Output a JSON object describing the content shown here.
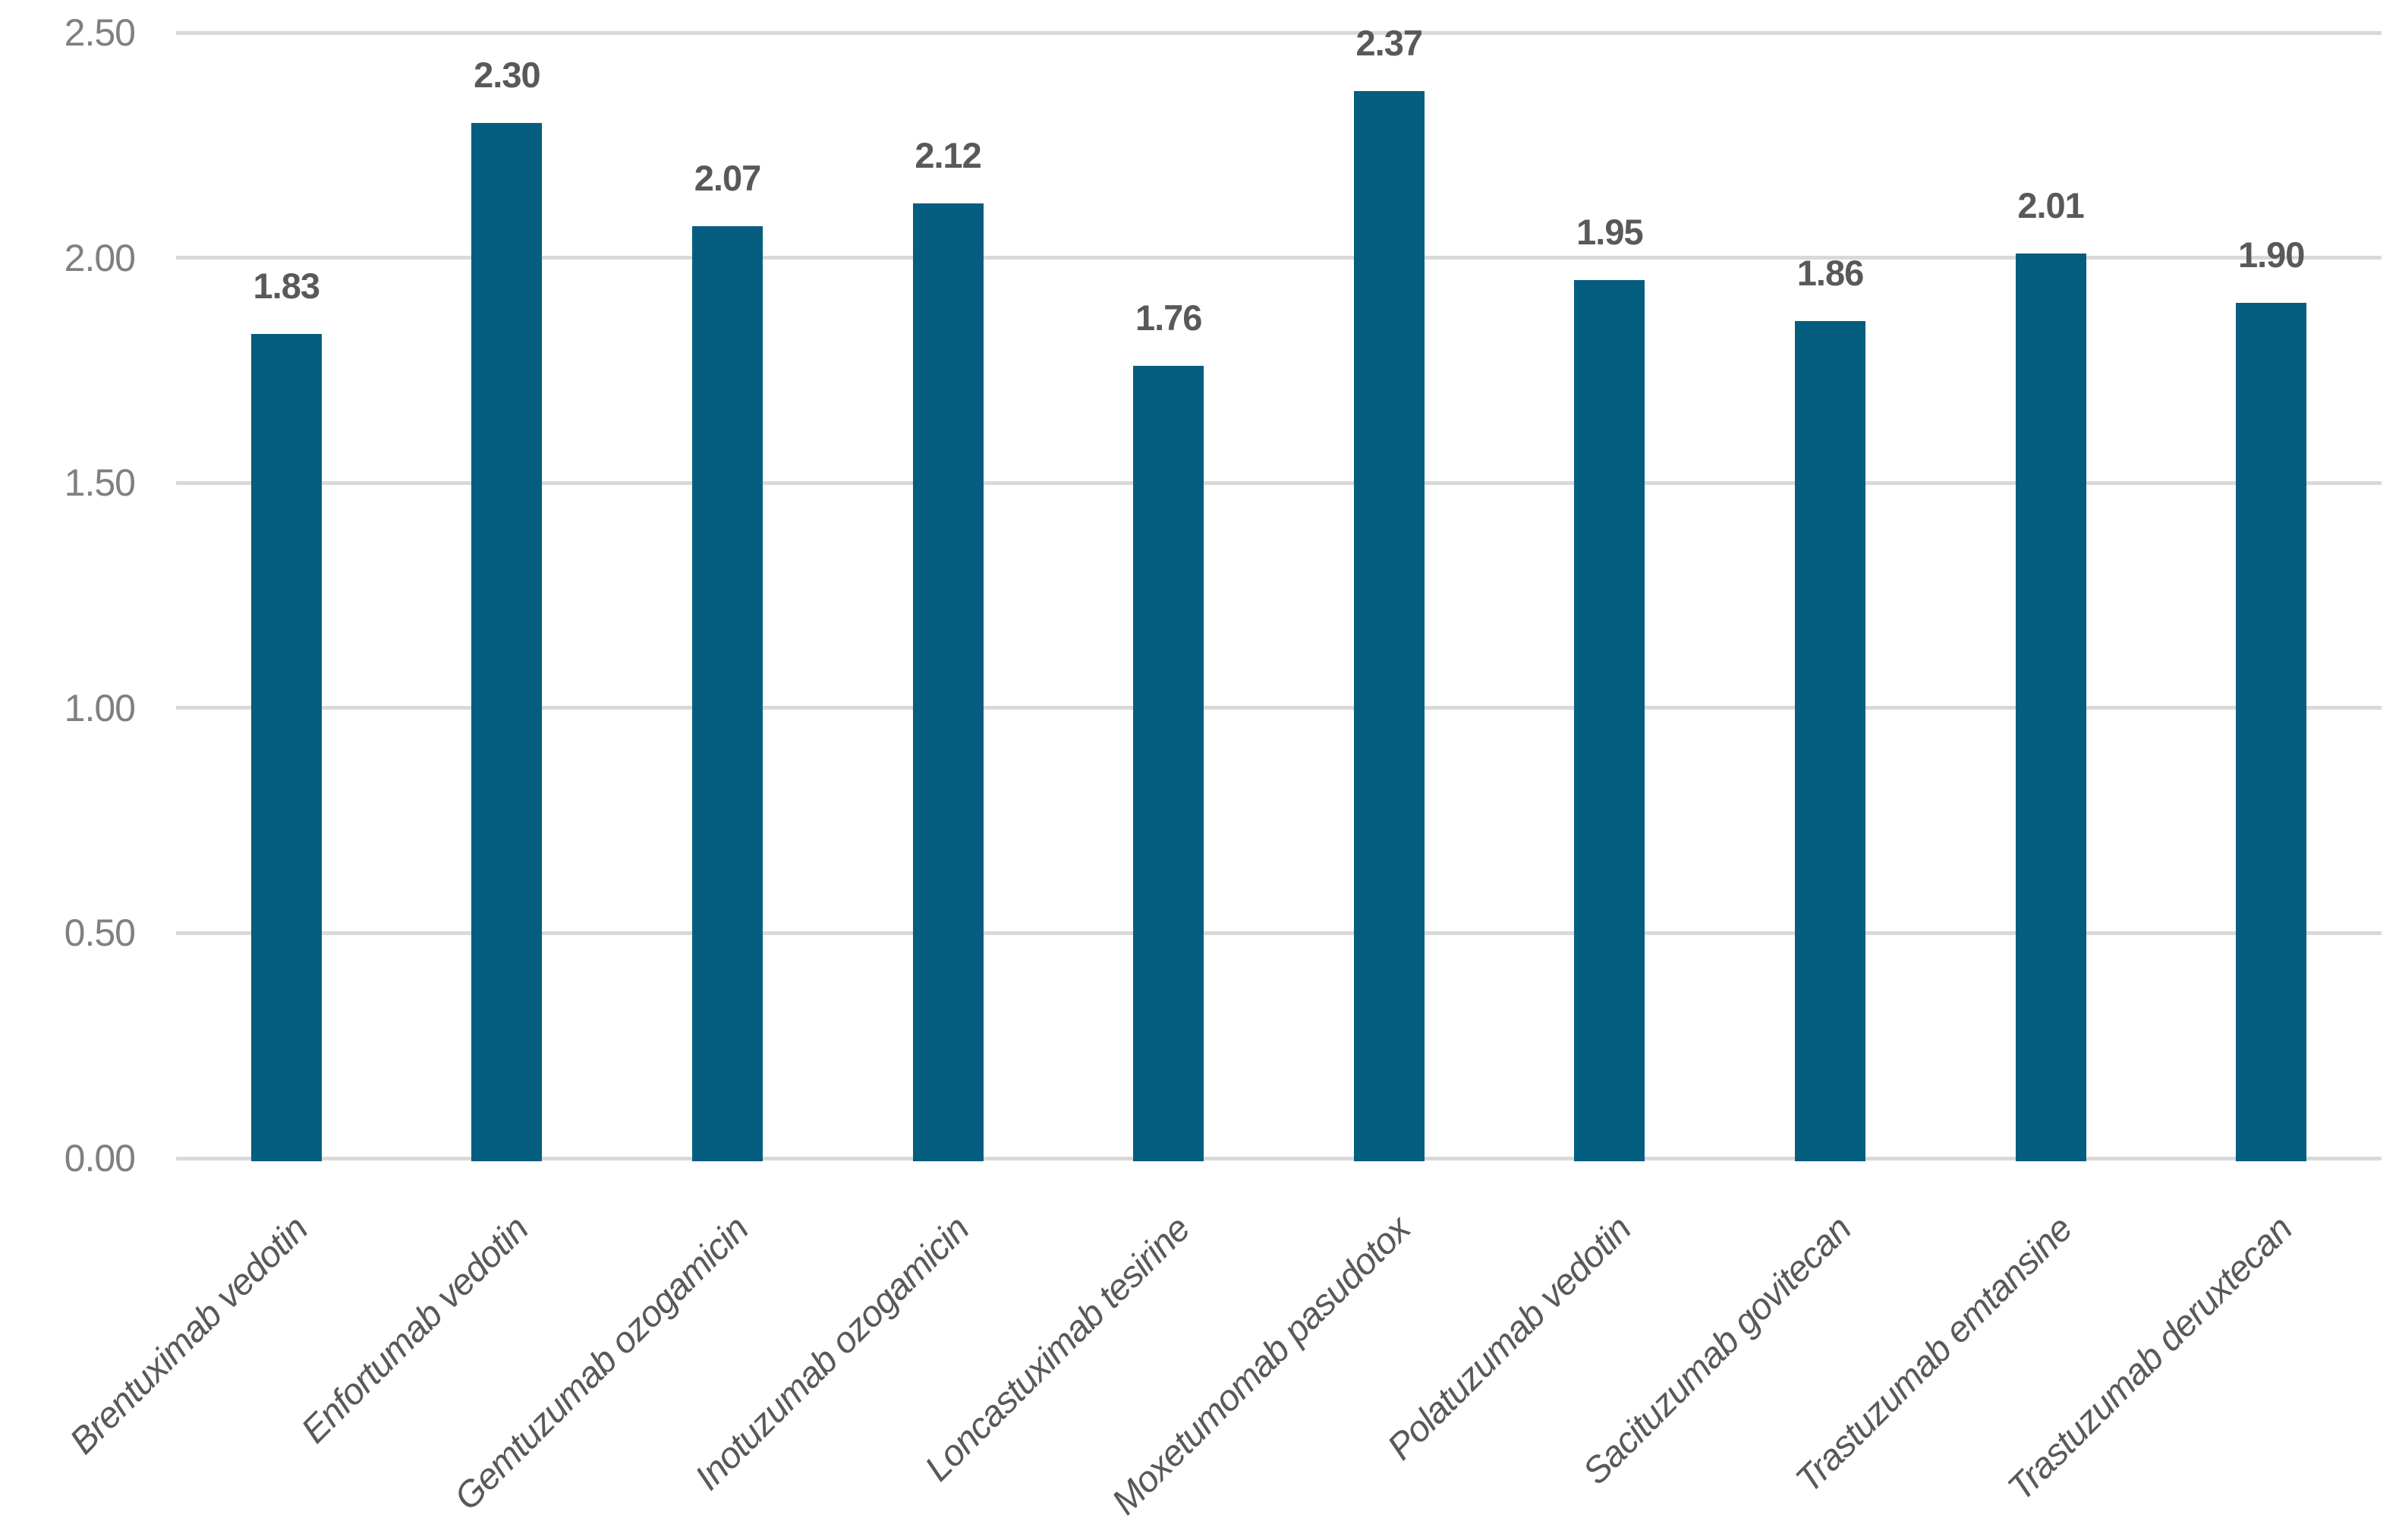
{
  "chart_data": {
    "type": "bar",
    "title": "",
    "xlabel": "",
    "ylabel": "",
    "categories": [
      "Brentuximab vedotin",
      "Enfortumab vedotin",
      "Gemtuzumab ozogamicin",
      "Inotuzumab ozogamicin",
      "Loncastuximab tesirine",
      "Moxetumomab pasudotox",
      "Polatuzumab vedotin",
      "Sacituzumab govitecan",
      "Trastuzumab emtansine",
      "Trastuzumab deruxtecan"
    ],
    "values": [
      1.83,
      2.3,
      2.07,
      2.12,
      1.76,
      2.37,
      1.95,
      1.86,
      2.01,
      1.9
    ],
    "value_labels": [
      "1.83",
      "2.30",
      "2.07",
      "2.12",
      "1.76",
      "2.37",
      "1.95",
      "1.86",
      "2.01",
      "1.90"
    ],
    "y_tick_labels": [
      "0.00",
      "0.50",
      "1.00",
      "1.50",
      "2.00",
      "2.50"
    ],
    "y_tick_values": [
      0,
      0.5,
      1,
      1.5,
      2,
      2.5
    ],
    "ylim": [
      0,
      2.5
    ],
    "grid": "horizontal",
    "legend_position": "none",
    "category_label_rotation_degrees": 45,
    "colors": {
      "bar": "#055E80",
      "gridline": "#D9D9D9",
      "y_tick_label": "#808080",
      "value_label": "#595959",
      "category_label": "#595959",
      "background": "#FFFFFF"
    }
  }
}
